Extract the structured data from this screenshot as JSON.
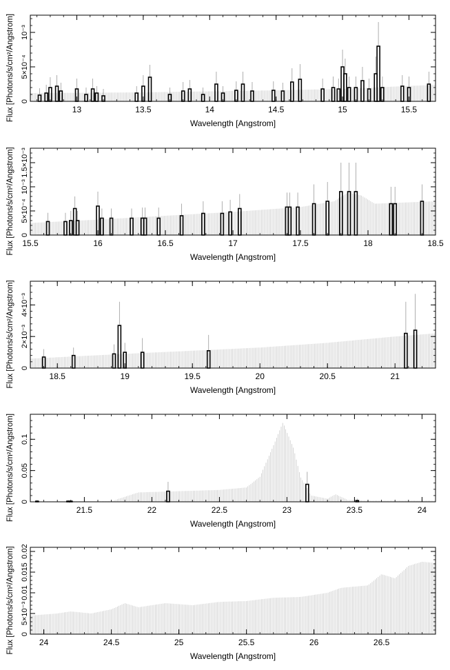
{
  "chart_data": [
    {
      "type": "line",
      "xlabel": "Wavelength [Angstrom]",
      "ylabel": "Flux [Photons/s/cm²/Angstrom]",
      "xlim": [
        12.65,
        15.7
      ],
      "ylim": [
        0,
        0.00125
      ],
      "xticks": [
        13,
        13.5,
        14,
        14.5,
        15,
        15.5
      ],
      "xtick_labels": [
        "13",
        "13.5",
        "14",
        "14.5",
        "15",
        "15.5"
      ],
      "yticks": [
        0,
        0.0005,
        0.001
      ],
      "ytick_labels": [
        "0",
        "5×10⁻⁴",
        "10⁻³"
      ],
      "model": {
        "x": [
          12.65,
          13.5,
          14.5,
          15.0,
          15.7
        ],
        "y": [
          0.00012,
          0.00013,
          0.00016,
          0.00018,
          0.00024
        ]
      },
      "bins": [
        {
          "x": 12.72,
          "y": 9e-05,
          "err": 0.0001
        },
        {
          "x": 12.77,
          "y": 0.00012,
          "err": 0.00012
        },
        {
          "x": 12.8,
          "y": 0.0002,
          "err": 0.00015
        },
        {
          "x": 12.85,
          "y": 0.00022,
          "err": 0.00016
        },
        {
          "x": 12.88,
          "y": 0.00015,
          "err": 0.00012
        },
        {
          "x": 13.0,
          "y": 0.00018,
          "err": 0.00015
        },
        {
          "x": 13.07,
          "y": 0.0001,
          "err": 0.0001
        },
        {
          "x": 13.12,
          "y": 0.00018,
          "err": 0.00015
        },
        {
          "x": 13.15,
          "y": 0.00012,
          "err": 0.0001
        },
        {
          "x": 13.2,
          "y": 8e-05,
          "err": 0.0001
        },
        {
          "x": 13.45,
          "y": 0.00012,
          "err": 0.0001
        },
        {
          "x": 13.5,
          "y": 0.00022,
          "err": 0.00016
        },
        {
          "x": 13.55,
          "y": 0.00035,
          "err": 0.00018
        },
        {
          "x": 13.7,
          "y": 0.0001,
          "err": 0.0001
        },
        {
          "x": 13.8,
          "y": 0.00015,
          "err": 0.00013
        },
        {
          "x": 13.85,
          "y": 0.00018,
          "err": 0.00013
        },
        {
          "x": 13.95,
          "y": 0.0001,
          "err": 0.0001
        },
        {
          "x": 14.05,
          "y": 0.00025,
          "err": 0.00018
        },
        {
          "x": 14.1,
          "y": 0.00012,
          "err": 0.0001
        },
        {
          "x": 14.2,
          "y": 0.00016,
          "err": 0.00013
        },
        {
          "x": 14.25,
          "y": 0.00025,
          "err": 0.00018
        },
        {
          "x": 14.32,
          "y": 0.00015,
          "err": 0.00013
        },
        {
          "x": 14.48,
          "y": 0.00016,
          "err": 0.00013
        },
        {
          "x": 14.55,
          "y": 0.00015,
          "err": 0.00012
        },
        {
          "x": 14.62,
          "y": 0.00028,
          "err": 0.0002
        },
        {
          "x": 14.68,
          "y": 0.00032,
          "err": 0.00022
        },
        {
          "x": 14.85,
          "y": 0.00018,
          "err": 0.00015
        },
        {
          "x": 14.93,
          "y": 0.0002,
          "err": 0.00016
        },
        {
          "x": 14.97,
          "y": 0.00018,
          "err": 0.00015
        },
        {
          "x": 15.0,
          "y": 0.0005,
          "err": 0.00025
        },
        {
          "x": 15.02,
          "y": 0.0004,
          "err": 0.00022
        },
        {
          "x": 15.05,
          "y": 0.0002,
          "err": 0.00016
        },
        {
          "x": 15.1,
          "y": 0.0002,
          "err": 0.00016
        },
        {
          "x": 15.15,
          "y": 0.0003,
          "err": 0.0002
        },
        {
          "x": 15.2,
          "y": 0.00018,
          "err": 0.00015
        },
        {
          "x": 15.25,
          "y": 0.0004,
          "err": 0.00025
        },
        {
          "x": 15.27,
          "y": 0.0008,
          "err": 0.00035
        },
        {
          "x": 15.3,
          "y": 0.0002,
          "err": 0.00016
        },
        {
          "x": 15.45,
          "y": 0.00022,
          "err": 0.00016
        },
        {
          "x": 15.5,
          "y": 0.0002,
          "err": 0.00016
        },
        {
          "x": 15.65,
          "y": 0.00025,
          "err": 0.00018
        }
      ]
    },
    {
      "type": "line",
      "xlabel": "Wavelength [Angstrom]",
      "ylabel": "Flux [Photons/s/cm²/Angstrom]",
      "xlim": [
        15.5,
        18.5
      ],
      "ylim": [
        0,
        0.0018
      ],
      "xticks": [
        15.5,
        16,
        16.5,
        17,
        17.5,
        18,
        18.5
      ],
      "xtick_labels": [
        "15.5",
        "16",
        "16.5",
        "17",
        "17.5",
        "18",
        "18.5"
      ],
      "yticks": [
        0,
        0.0005,
        0.001,
        0.0015
      ],
      "ytick_labels": [
        "0",
        "5×10⁻⁴",
        "10⁻³",
        "1.5×10⁻³"
      ],
      "model": {
        "x": [
          15.5,
          16.0,
          16.5,
          17.0,
          17.5,
          17.75,
          17.85,
          17.95,
          18.05,
          18.5
        ],
        "y": [
          0.00025,
          0.00032,
          0.0004,
          0.00048,
          0.00058,
          0.0007,
          0.00088,
          0.00082,
          0.00065,
          0.0007
        ]
      },
      "bins": [
        {
          "x": 15.63,
          "y": 0.00028,
          "err": 0.00018
        },
        {
          "x": 15.76,
          "y": 0.00028,
          "err": 0.00018
        },
        {
          "x": 15.8,
          "y": 0.0003,
          "err": 0.0002
        },
        {
          "x": 15.83,
          "y": 0.00055,
          "err": 0.00025
        },
        {
          "x": 15.85,
          "y": 0.0003,
          "err": 0.0002
        },
        {
          "x": 16.0,
          "y": 0.0006,
          "err": 0.0003
        },
        {
          "x": 16.03,
          "y": 0.00035,
          "err": 0.0002
        },
        {
          "x": 16.1,
          "y": 0.00035,
          "err": 0.0002
        },
        {
          "x": 16.25,
          "y": 0.00035,
          "err": 0.0002
        },
        {
          "x": 16.33,
          "y": 0.00035,
          "err": 0.00022
        },
        {
          "x": 16.35,
          "y": 0.00035,
          "err": 0.00022
        },
        {
          "x": 16.45,
          "y": 0.00035,
          "err": 0.00022
        },
        {
          "x": 16.62,
          "y": 0.0004,
          "err": 0.00025
        },
        {
          "x": 16.78,
          "y": 0.00045,
          "err": 0.00025
        },
        {
          "x": 16.92,
          "y": 0.00045,
          "err": 0.00025
        },
        {
          "x": 16.98,
          "y": 0.00048,
          "err": 0.00025
        },
        {
          "x": 17.05,
          "y": 0.00055,
          "err": 0.0003
        },
        {
          "x": 17.4,
          "y": 0.00058,
          "err": 0.0003
        },
        {
          "x": 17.42,
          "y": 0.00058,
          "err": 0.0003
        },
        {
          "x": 17.48,
          "y": 0.00058,
          "err": 0.0003
        },
        {
          "x": 17.6,
          "y": 0.00065,
          "err": 0.0004
        },
        {
          "x": 17.7,
          "y": 0.0007,
          "err": 0.0004
        },
        {
          "x": 17.8,
          "y": 0.0009,
          "err": 0.0006
        },
        {
          "x": 17.86,
          "y": 0.0009,
          "err": 0.0006
        },
        {
          "x": 17.91,
          "y": 0.0009,
          "err": 0.0006
        },
        {
          "x": 18.17,
          "y": 0.00065,
          "err": 0.00035
        },
        {
          "x": 18.2,
          "y": 0.00065,
          "err": 0.00035
        },
        {
          "x": 18.4,
          "y": 0.0007,
          "err": 0.00035
        }
      ]
    },
    {
      "type": "line",
      "xlabel": "Wavelength [Angstrom]",
      "ylabel": "Flux [Photons/s/cm²/Angstrom]",
      "xlim": [
        18.3,
        21.3
      ],
      "ylim": [
        0,
        0.0055
      ],
      "xticks": [
        18.5,
        19,
        19.5,
        20,
        20.5,
        21
      ],
      "xtick_labels": [
        "18.5",
        "19",
        "19.5",
        "20",
        "20.5",
        "21"
      ],
      "yticks": [
        0,
        0.002,
        0.004
      ],
      "ytick_labels": [
        "0",
        "2×10⁻³",
        "4×10⁻³"
      ],
      "model": {
        "x": [
          18.3,
          19.0,
          19.5,
          20.0,
          20.5,
          21.0,
          21.3
        ],
        "y": [
          0.0006,
          0.0009,
          0.0011,
          0.0013,
          0.0016,
          0.002,
          0.0022
        ]
      },
      "bins": [
        {
          "x": 18.4,
          "y": 0.0007,
          "err": 0.0005
        },
        {
          "x": 18.62,
          "y": 0.0008,
          "err": 0.0005
        },
        {
          "x": 18.92,
          "y": 0.0009,
          "err": 0.0006
        },
        {
          "x": 18.96,
          "y": 0.0027,
          "err": 0.0015
        },
        {
          "x": 19.0,
          "y": 0.001,
          "err": 0.0006
        },
        {
          "x": 19.13,
          "y": 0.001,
          "err": 0.0009
        },
        {
          "x": 19.62,
          "y": 0.0011,
          "err": 0.001
        },
        {
          "x": 21.08,
          "y": 0.0022,
          "err": 0.002
        },
        {
          "x": 21.15,
          "y": 0.0024,
          "err": 0.0023
        }
      ]
    },
    {
      "type": "line",
      "xlabel": "Wavelength [Angstrom]",
      "ylabel": "Flux [Photons/s/cm²/Angstrom]",
      "xlim": [
        21.1,
        24.1
      ],
      "ylim": [
        0,
        0.14
      ],
      "xticks": [
        21.5,
        22,
        22.5,
        23,
        23.5,
        24
      ],
      "xtick_labels": [
        "21.5",
        "22",
        "22.5",
        "23",
        "23.5",
        "24"
      ],
      "yticks": [
        0,
        0.05,
        0.1
      ],
      "ytick_labels": [
        "0",
        "0.05",
        "0.1"
      ],
      "model": {
        "x": [
          21.1,
          21.7,
          21.8,
          21.9,
          22.2,
          22.5,
          22.7,
          22.8,
          22.9,
          22.97,
          23.05,
          23.1,
          23.18,
          23.3,
          23.36,
          23.45,
          23.6,
          24.1
        ],
        "y": [
          0.0005,
          0.001,
          0.008,
          0.015,
          0.017,
          0.019,
          0.023,
          0.04,
          0.09,
          0.127,
          0.085,
          0.04,
          0.01,
          0.005,
          0.012,
          0.003,
          0.002,
          0.002
        ]
      },
      "bins": [
        {
          "x": 21.15,
          "y": 0.001,
          "err": 0.002
        },
        {
          "x": 21.38,
          "y": 0.001,
          "err": 0.002
        },
        {
          "x": 21.4,
          "y": 0.001,
          "err": 0.002
        },
        {
          "x": 22.12,
          "y": 0.017,
          "err": 0.015
        },
        {
          "x": 23.15,
          "y": 0.028,
          "err": 0.02
        },
        {
          "x": 23.52,
          "y": 0.002,
          "err": 0.003
        }
      ]
    },
    {
      "type": "line",
      "xlabel": "Wavelength [Angstrom]",
      "ylabel": "Flux [Photons/s/cm²/Angstrom]",
      "xlim": [
        23.9,
        26.9
      ],
      "ylim": [
        0,
        0.021
      ],
      "xticks": [
        24,
        24.5,
        25,
        25.5,
        26,
        26.5
      ],
      "xtick_labels": [
        "24",
        "24.5",
        "25",
        "25.5",
        "26",
        "26.5"
      ],
      "yticks": [
        0,
        0.005,
        0.01,
        0.015,
        0.02
      ],
      "ytick_labels": [
        "0",
        "5×10⁻³",
        "0.01",
        "0.015",
        "0.02"
      ],
      "model": {
        "x": [
          23.9,
          24.1,
          24.2,
          24.35,
          24.5,
          24.6,
          24.7,
          24.9,
          25.1,
          25.3,
          25.5,
          25.7,
          25.9,
          26.1,
          26.2,
          26.4,
          26.5,
          26.6,
          26.7,
          26.8,
          26.9
        ],
        "y": [
          0.0045,
          0.005,
          0.0055,
          0.005,
          0.006,
          0.0075,
          0.0065,
          0.0075,
          0.007,
          0.0078,
          0.008,
          0.0088,
          0.009,
          0.01,
          0.0112,
          0.0118,
          0.0145,
          0.0135,
          0.0165,
          0.0175,
          0.0172
        ]
      },
      "bins": []
    }
  ]
}
